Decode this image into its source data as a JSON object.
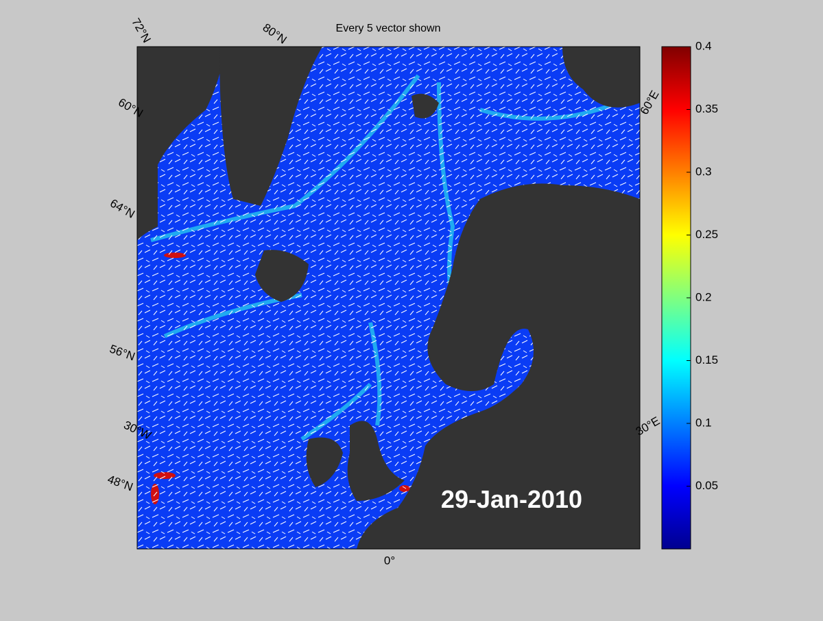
{
  "title": "Every 5 vector shown",
  "date_label": "29-Jan-2010",
  "graticule_labels": [
    "72°N",
    "80°N",
    "60°N",
    "64°N",
    "56°N",
    "30°W",
    "48°N",
    "0°",
    "30°E",
    "60°E"
  ],
  "colorbar": {
    "lim": [
      0,
      0.4
    ],
    "ticks": [
      0.05,
      0.1,
      0.15,
      0.2,
      0.25,
      0.3,
      0.35,
      0.4
    ]
  }
}
